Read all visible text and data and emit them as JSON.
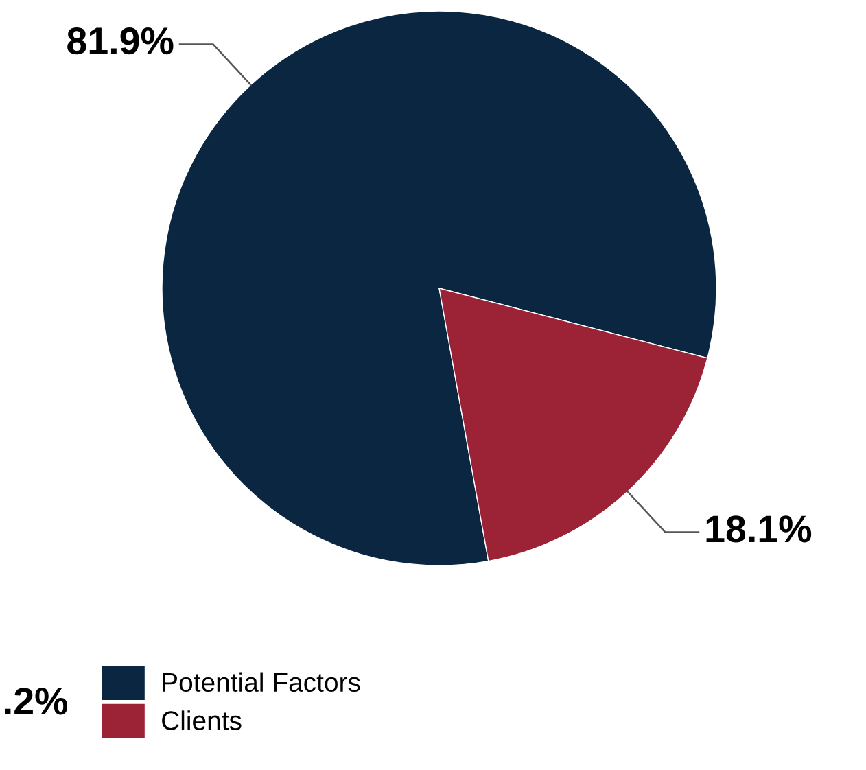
{
  "chart_data": {
    "type": "pie",
    "categories": [
      "Potential Factors",
      "Clients"
    ],
    "values": [
      81.9,
      18.1
    ],
    "colors": [
      "#0b2640",
      "#9b2335"
    ],
    "value_labels": [
      "81.9%",
      "18.1%"
    ],
    "annotations": [
      ".2%"
    ],
    "legend": "bottom left"
  }
}
